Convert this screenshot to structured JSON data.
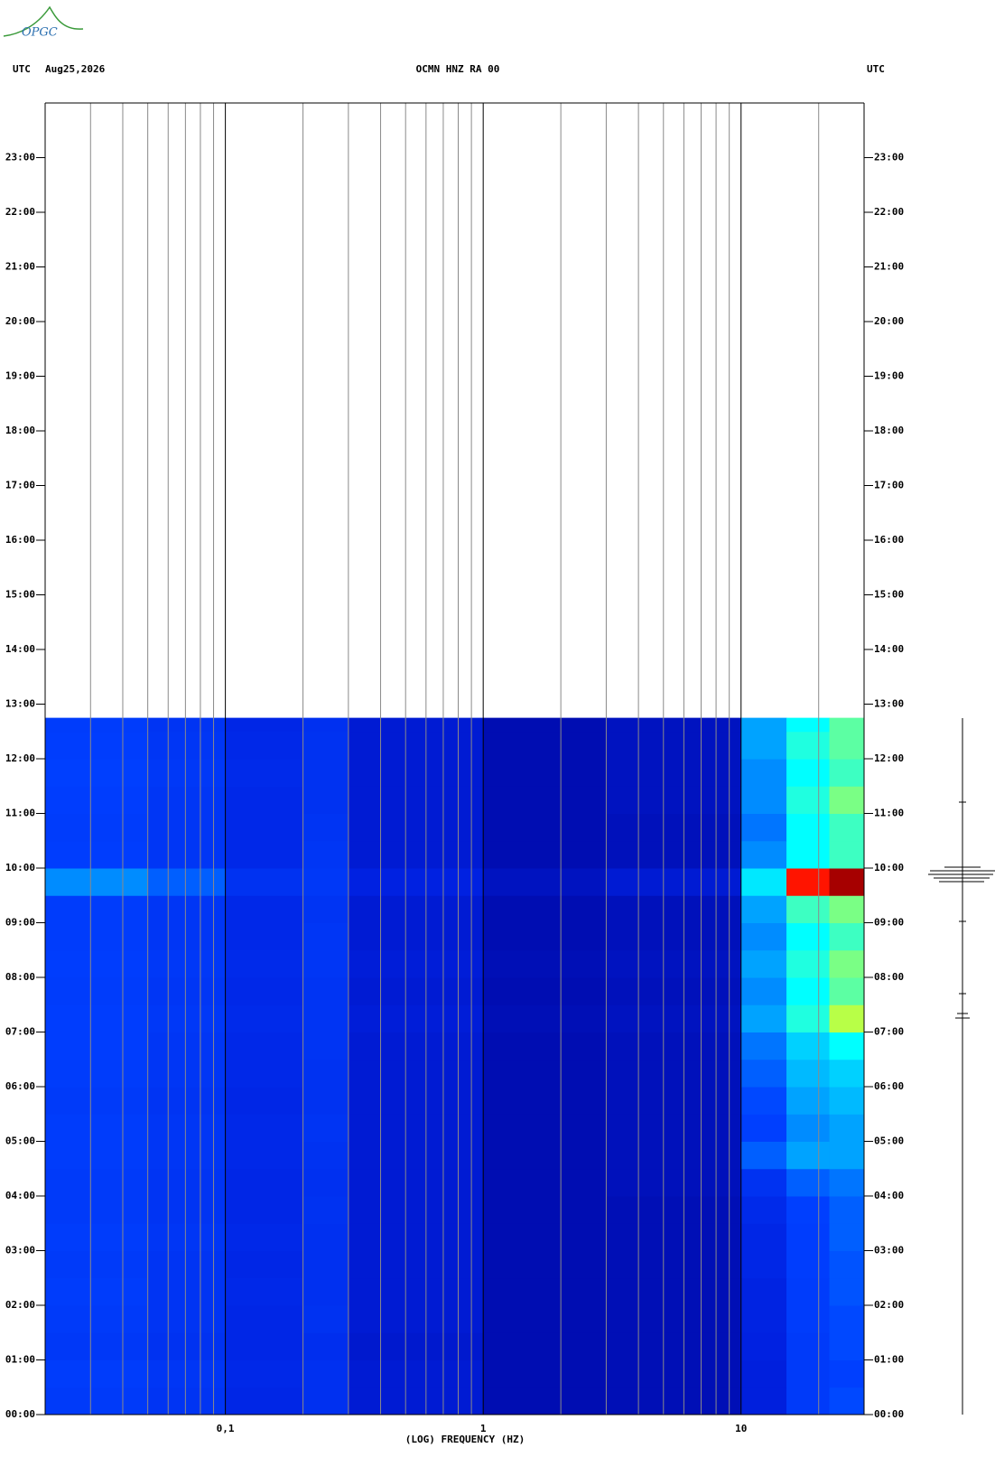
{
  "logo": "OPGC",
  "chart_data": {
    "type": "heatmap",
    "title": "OCMN HNZ RA 00",
    "date": "Aug25,2026",
    "left_label": "UTC",
    "right_label": "UTC",
    "xlabel": "(LOG) FREQUENCY (HZ)",
    "xscale": "log",
    "xlim": [
      0.02,
      30
    ],
    "xticks": [
      {
        "value": 0.1,
        "label": "0,1"
      },
      1,
      10
    ],
    "xgrid_minor": [
      0.03,
      0.04,
      0.05,
      0.06,
      0.07,
      0.08,
      0.09,
      0.2,
      0.3,
      0.4,
      0.5,
      0.6,
      0.7,
      0.8,
      0.9,
      2,
      3,
      4,
      5,
      6,
      7,
      8,
      9,
      20
    ],
    "ylim": [
      0,
      24
    ],
    "yticks": [
      {
        "value": 0,
        "label": "00:00"
      },
      {
        "value": 1,
        "label": "01:00"
      },
      {
        "value": 2,
        "label": "02:00"
      },
      {
        "value": 3,
        "label": "03:00"
      },
      {
        "value": 4,
        "label": "04:00"
      },
      {
        "value": 5,
        "label": "05:00"
      },
      {
        "value": 6,
        "label": "06:00"
      },
      {
        "value": 7,
        "label": "07:00"
      },
      {
        "value": 8,
        "label": "08:00"
      },
      {
        "value": 9,
        "label": "09:00"
      },
      {
        "value": 10,
        "label": "10:00"
      },
      {
        "value": 11,
        "label": "11:00"
      },
      {
        "value": 12,
        "label": "12:00"
      },
      {
        "value": 13,
        "label": "13:00"
      },
      {
        "value": 14,
        "label": "14:00"
      },
      {
        "value": 15,
        "label": "15:00"
      },
      {
        "value": 16,
        "label": "16:00"
      },
      {
        "value": 17,
        "label": "17:00"
      },
      {
        "value": 18,
        "label": "18:00"
      },
      {
        "value": 19,
        "label": "19:00"
      },
      {
        "value": 20,
        "label": "20:00"
      },
      {
        "value": 21,
        "label": "21:00"
      },
      {
        "value": 22,
        "label": "22:00"
      },
      {
        "value": 23,
        "label": "23:00"
      }
    ],
    "zlim": [
      0,
      1
    ],
    "colormap": [
      "#000090",
      "#0020e0",
      "#0040ff",
      "#00ffff",
      "#ffff00",
      "#ff0000",
      "#800000"
    ],
    "x_edges": [
      0.02,
      0.05,
      0.1,
      0.2,
      0.3,
      1,
      3,
      10,
      15,
      22,
      30
    ],
    "y_edges": [
      0,
      0.5,
      1,
      1.5,
      2,
      2.5,
      3,
      3.5,
      4,
      4.5,
      5,
      5.5,
      6,
      6.5,
      7,
      7.5,
      8,
      8.5,
      9,
      9.5,
      10,
      10.5,
      11,
      11.5,
      12,
      12.5,
      12.75
    ],
    "z": [
      [
        0.3,
        0.27,
        0.2,
        0.25,
        0.14,
        0.07,
        0.08,
        0.16,
        0.3,
        0.34
      ],
      [
        0.31,
        0.28,
        0.21,
        0.25,
        0.14,
        0.07,
        0.08,
        0.16,
        0.3,
        0.33
      ],
      [
        0.29,
        0.26,
        0.2,
        0.24,
        0.13,
        0.07,
        0.08,
        0.17,
        0.3,
        0.34
      ],
      [
        0.3,
        0.27,
        0.2,
        0.26,
        0.14,
        0.07,
        0.08,
        0.18,
        0.31,
        0.34
      ],
      [
        0.31,
        0.27,
        0.21,
        0.25,
        0.14,
        0.07,
        0.08,
        0.18,
        0.31,
        0.35
      ],
      [
        0.3,
        0.27,
        0.2,
        0.25,
        0.14,
        0.07,
        0.08,
        0.2,
        0.32,
        0.35
      ],
      [
        0.31,
        0.28,
        0.21,
        0.25,
        0.14,
        0.07,
        0.08,
        0.2,
        0.32,
        0.36
      ],
      [
        0.3,
        0.27,
        0.2,
        0.26,
        0.14,
        0.07,
        0.08,
        0.22,
        0.33,
        0.36
      ],
      [
        0.3,
        0.27,
        0.2,
        0.25,
        0.14,
        0.07,
        0.09,
        0.26,
        0.36,
        0.38
      ],
      [
        0.31,
        0.28,
        0.21,
        0.26,
        0.14,
        0.07,
        0.09,
        0.36,
        0.42,
        0.42
      ],
      [
        0.31,
        0.28,
        0.21,
        0.27,
        0.14,
        0.07,
        0.09,
        0.33,
        0.4,
        0.42
      ],
      [
        0.3,
        0.27,
        0.2,
        0.26,
        0.14,
        0.07,
        0.09,
        0.34,
        0.42,
        0.44
      ],
      [
        0.31,
        0.28,
        0.21,
        0.26,
        0.14,
        0.07,
        0.09,
        0.36,
        0.44,
        0.46
      ],
      [
        0.32,
        0.28,
        0.21,
        0.27,
        0.14,
        0.07,
        0.09,
        0.38,
        0.46,
        0.5
      ],
      [
        0.32,
        0.29,
        0.22,
        0.27,
        0.15,
        0.08,
        0.1,
        0.42,
        0.52,
        0.62
      ],
      [
        0.31,
        0.28,
        0.21,
        0.27,
        0.14,
        0.07,
        0.09,
        0.4,
        0.5,
        0.56
      ],
      [
        0.32,
        0.29,
        0.22,
        0.28,
        0.15,
        0.08,
        0.1,
        0.42,
        0.52,
        0.58
      ],
      [
        0.31,
        0.28,
        0.21,
        0.28,
        0.14,
        0.07,
        0.09,
        0.4,
        0.5,
        0.54
      ],
      [
        0.31,
        0.28,
        0.21,
        0.27,
        0.14,
        0.07,
        0.09,
        0.42,
        0.54,
        0.58
      ],
      [
        0.4,
        0.36,
        0.26,
        0.29,
        0.17,
        0.1,
        0.14,
        0.48,
        0.82,
        0.95
      ],
      [
        0.32,
        0.28,
        0.21,
        0.28,
        0.14,
        0.07,
        0.09,
        0.4,
        0.5,
        0.54
      ],
      [
        0.31,
        0.28,
        0.21,
        0.27,
        0.14,
        0.07,
        0.09,
        0.38,
        0.5,
        0.54
      ],
      [
        0.32,
        0.28,
        0.21,
        0.26,
        0.14,
        0.07,
        0.1,
        0.4,
        0.52,
        0.58
      ],
      [
        0.33,
        0.29,
        0.22,
        0.26,
        0.14,
        0.07,
        0.1,
        0.4,
        0.5,
        0.54
      ],
      [
        0.32,
        0.28,
        0.21,
        0.26,
        0.14,
        0.07,
        0.1,
        0.42,
        0.52,
        0.56
      ],
      [
        0.31,
        0.27,
        0.2,
        0.25,
        0.14,
        0.07,
        0.1,
        0.42,
        0.5,
        0.56
      ]
    ]
  }
}
